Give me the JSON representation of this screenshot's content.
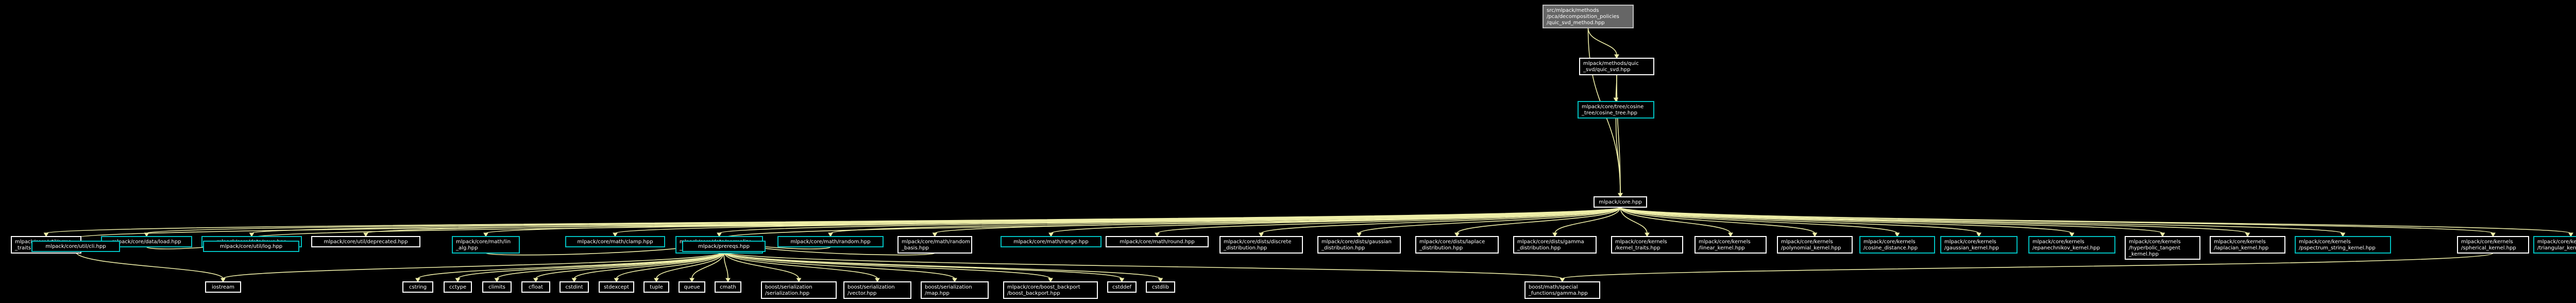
{
  "colors": {
    "background": "#000000",
    "edge": "#eeeea8",
    "node_text": "#ffffff",
    "border_default": "#ffffff",
    "border_link": "#00c0c0",
    "root_fill": "#666666",
    "root_border": "#bfbfbf"
  },
  "nodes": {
    "root": {
      "lines": [
        "src/mlpack/methods",
        "/pca/decomposition_policies",
        "/quic_svd_method.hpp"
      ],
      "kind": "root"
    },
    "quic_svd": {
      "lines": [
        "mlpack/methods/quic",
        "_svd/quic_svd.hpp"
      ],
      "kind": "plain"
    },
    "cosine_tree": {
      "lines": [
        "mlpack/core/tree/cosine",
        "_tree/cosine_tree.hpp"
      ],
      "kind": "link"
    },
    "core": {
      "lines": [
        "mlpack/core.hpp"
      ],
      "kind": "plain"
    },
    "arma_traits": {
      "lines": [
        "mlpack/core/util/arma",
        "_traits.hpp"
      ],
      "kind": "plain"
    },
    "data_load": {
      "lines": [
        "mlpack/core/data/load.hpp"
      ],
      "kind": "link"
    },
    "data_save": {
      "lines": [
        "mlpack/core/data/save.hpp"
      ],
      "kind": "link"
    },
    "deprecated": {
      "lines": [
        "mlpack/core/util/deprecated.hpp"
      ],
      "kind": "plain"
    },
    "math_lin_alg": {
      "lines": [
        "mlpack/core/math/lin",
        "_alg.hpp"
      ],
      "kind": "link"
    },
    "math_clamp": {
      "lines": [
        "mlpack/core/math/clamp.hpp"
      ],
      "kind": "link"
    },
    "normalize_labels": {
      "lines": [
        "mlpack/core/data/normalize",
        "_labels.hpp"
      ],
      "kind": "link"
    },
    "math_random": {
      "lines": [
        "mlpack/core/math/random.hpp"
      ],
      "kind": "link"
    },
    "random_basis": {
      "lines": [
        "mlpack/core/math/random",
        "_basis.hpp"
      ],
      "kind": "plain"
    },
    "math_range": {
      "lines": [
        "mlpack/core/math/range.hpp"
      ],
      "kind": "link"
    },
    "math_round": {
      "lines": [
        "mlpack/core/math/round.hpp"
      ],
      "kind": "plain"
    },
    "discrete_dist": {
      "lines": [
        "mlpack/core/dists/discrete",
        "_distribution.hpp"
      ],
      "kind": "plain"
    },
    "gaussian_dist": {
      "lines": [
        "mlpack/core/dists/gaussian",
        "_distribution.hpp"
      ],
      "kind": "plain"
    },
    "laplace_dist": {
      "lines": [
        "mlpack/core/dists/laplace",
        "_distribution.hpp"
      ],
      "kind": "plain"
    },
    "gamma_dist": {
      "lines": [
        "mlpack/core/dists/gamma",
        "_distribution.hpp"
      ],
      "kind": "plain"
    },
    "kernel_traits": {
      "lines": [
        "mlpack/core/kernels",
        "/kernel_traits.hpp"
      ],
      "kind": "plain"
    },
    "linear_kernel": {
      "lines": [
        "mlpack/core/kernels",
        "/linear_kernel.hpp"
      ],
      "kind": "plain"
    },
    "polynomial_kernel": {
      "lines": [
        "mlpack/core/kernels",
        "/polynomial_kernel.hpp"
      ],
      "kind": "plain"
    },
    "cosine_distance": {
      "lines": [
        "mlpack/core/kernels",
        "/cosine_distance.hpp"
      ],
      "kind": "link"
    },
    "gaussian_kernel": {
      "lines": [
        "mlpack/core/kernels",
        "/gaussian_kernel.hpp"
      ],
      "kind": "link"
    },
    "epanechnikov_kernel": {
      "lines": [
        "mlpack/core/kernels",
        "/epanechnikov_kernel.hpp"
      ],
      "kind": "link"
    },
    "hyperbolic_kernel": {
      "lines": [
        "mlpack/core/kernels",
        "/hyperbolic_tangent",
        "_kernel.hpp"
      ],
      "kind": "plain"
    },
    "laplacian_kernel": {
      "lines": [
        "mlpack/core/kernels",
        "/laplacian_kernel.hpp"
      ],
      "kind": "plain"
    },
    "pspectrum_kernel": {
      "lines": [
        "mlpack/core/kernels",
        "/pspectrum_string_kernel.hpp"
      ],
      "kind": "link"
    },
    "spherical_kernel": {
      "lines": [
        "mlpack/core/kernels",
        "/spherical_kernel.hpp"
      ],
      "kind": "plain"
    },
    "triangular_kernel": {
      "lines": [
        "mlpack/core/kernels",
        "/triangular_kernel.hpp"
      ],
      "kind": "link"
    },
    "cli_hpp": {
      "lines": [
        "mlpack/core/util/cli.hpp"
      ],
      "kind": "link"
    },
    "log_hpp": {
      "lines": [
        "mlpack/core/util/log.hpp"
      ],
      "kind": "link"
    },
    "prereqs": {
      "lines": [
        "mlpack/prereqs.hpp"
      ],
      "kind": "link"
    },
    "iostream": {
      "lines": [
        "iostream"
      ],
      "kind": "plain"
    },
    "cstring": {
      "lines": [
        "cstring"
      ],
      "kind": "plain"
    },
    "cctype": {
      "lines": [
        "cctype"
      ],
      "kind": "plain"
    },
    "climits": {
      "lines": [
        "climits"
      ],
      "kind": "plain"
    },
    "cfloat": {
      "lines": [
        "cfloat"
      ],
      "kind": "plain"
    },
    "cstdint": {
      "lines": [
        "cstdint"
      ],
      "kind": "plain"
    },
    "stdexcept": {
      "lines": [
        "stdexcept"
      ],
      "kind": "plain"
    },
    "tuple": {
      "lines": [
        "tuple"
      ],
      "kind": "plain"
    },
    "queue": {
      "lines": [
        "queue"
      ],
      "kind": "plain"
    },
    "cmath": {
      "lines": [
        "cmath"
      ],
      "kind": "plain"
    },
    "boost_serialization": {
      "lines": [
        "boost/serialization",
        "/serialization.hpp"
      ],
      "kind": "plain"
    },
    "boost_vector": {
      "lines": [
        "boost/serialization",
        "/vector.hpp"
      ],
      "kind": "plain"
    },
    "boost_map": {
      "lines": [
        "boost/serialization",
        "/map.hpp"
      ],
      "kind": "plain"
    },
    "boost_backport": {
      "lines": [
        "mlpack/core/boost_backport",
        "/boost_backport.hpp"
      ],
      "kind": "plain"
    },
    "cstddef": {
      "lines": [
        "cstddef"
      ],
      "kind": "plain"
    },
    "cstdlib": {
      "lines": [
        "cstdlib"
      ],
      "kind": "plain"
    },
    "boost_gamma": {
      "lines": [
        "boost/math/special",
        "_functions/gamma.hpp"
      ],
      "kind": "plain"
    }
  },
  "edges": [
    [
      "root",
      "quic_svd"
    ],
    [
      "root",
      "core"
    ],
    [
      "quic_svd",
      "cosine_tree"
    ],
    [
      "quic_svd",
      "core"
    ],
    [
      "cosine_tree",
      "core"
    ],
    [
      "core",
      "arma_traits"
    ],
    [
      "core",
      "data_load"
    ],
    [
      "core",
      "data_save"
    ],
    [
      "core",
      "deprecated"
    ],
    [
      "core",
      "math_lin_alg"
    ],
    [
      "core",
      "math_clamp"
    ],
    [
      "core",
      "normalize_labels"
    ],
    [
      "core",
      "math_random"
    ],
    [
      "core",
      "random_basis"
    ],
    [
      "core",
      "math_range"
    ],
    [
      "core",
      "math_round"
    ],
    [
      "core",
      "discrete_dist"
    ],
    [
      "core",
      "gaussian_dist"
    ],
    [
      "core",
      "laplace_dist"
    ],
    [
      "core",
      "gamma_dist"
    ],
    [
      "core",
      "kernel_traits"
    ],
    [
      "core",
      "linear_kernel"
    ],
    [
      "core",
      "polynomial_kernel"
    ],
    [
      "core",
      "cosine_distance"
    ],
    [
      "core",
      "gaussian_kernel"
    ],
    [
      "core",
      "epanechnikov_kernel"
    ],
    [
      "core",
      "hyperbolic_kernel"
    ],
    [
      "core",
      "laplacian_kernel"
    ],
    [
      "core",
      "pspectrum_kernel"
    ],
    [
      "core",
      "spherical_kernel"
    ],
    [
      "core",
      "triangular_kernel"
    ],
    [
      "core",
      "cli_hpp"
    ],
    [
      "core",
      "log_hpp"
    ],
    [
      "core",
      "prereqs"
    ],
    [
      "data_load",
      "log_hpp"
    ],
    [
      "data_save",
      "log_hpp"
    ],
    [
      "cli_hpp",
      "iostream"
    ],
    [
      "math_lin_alg",
      "prereqs"
    ],
    [
      "normalize_labels",
      "prereqs"
    ],
    [
      "math_random",
      "prereqs"
    ],
    [
      "random_basis",
      "prereqs"
    ],
    [
      "prereqs",
      "iostream"
    ],
    [
      "prereqs",
      "cstring"
    ],
    [
      "prereqs",
      "cctype"
    ],
    [
      "prereqs",
      "climits"
    ],
    [
      "prereqs",
      "cfloat"
    ],
    [
      "prereqs",
      "cstdint"
    ],
    [
      "prereqs",
      "stdexcept"
    ],
    [
      "prereqs",
      "tuple"
    ],
    [
      "prereqs",
      "queue"
    ],
    [
      "prereqs",
      "cmath"
    ],
    [
      "prereqs",
      "boost_serialization"
    ],
    [
      "prereqs",
      "boost_vector"
    ],
    [
      "prereqs",
      "boost_map"
    ],
    [
      "prereqs",
      "boost_backport"
    ],
    [
      "prereqs",
      "cstddef"
    ],
    [
      "prereqs",
      "cstdlib"
    ],
    [
      "prereqs",
      "boost_gamma"
    ],
    [
      "spherical_kernel",
      "boost_gamma"
    ]
  ]
}
